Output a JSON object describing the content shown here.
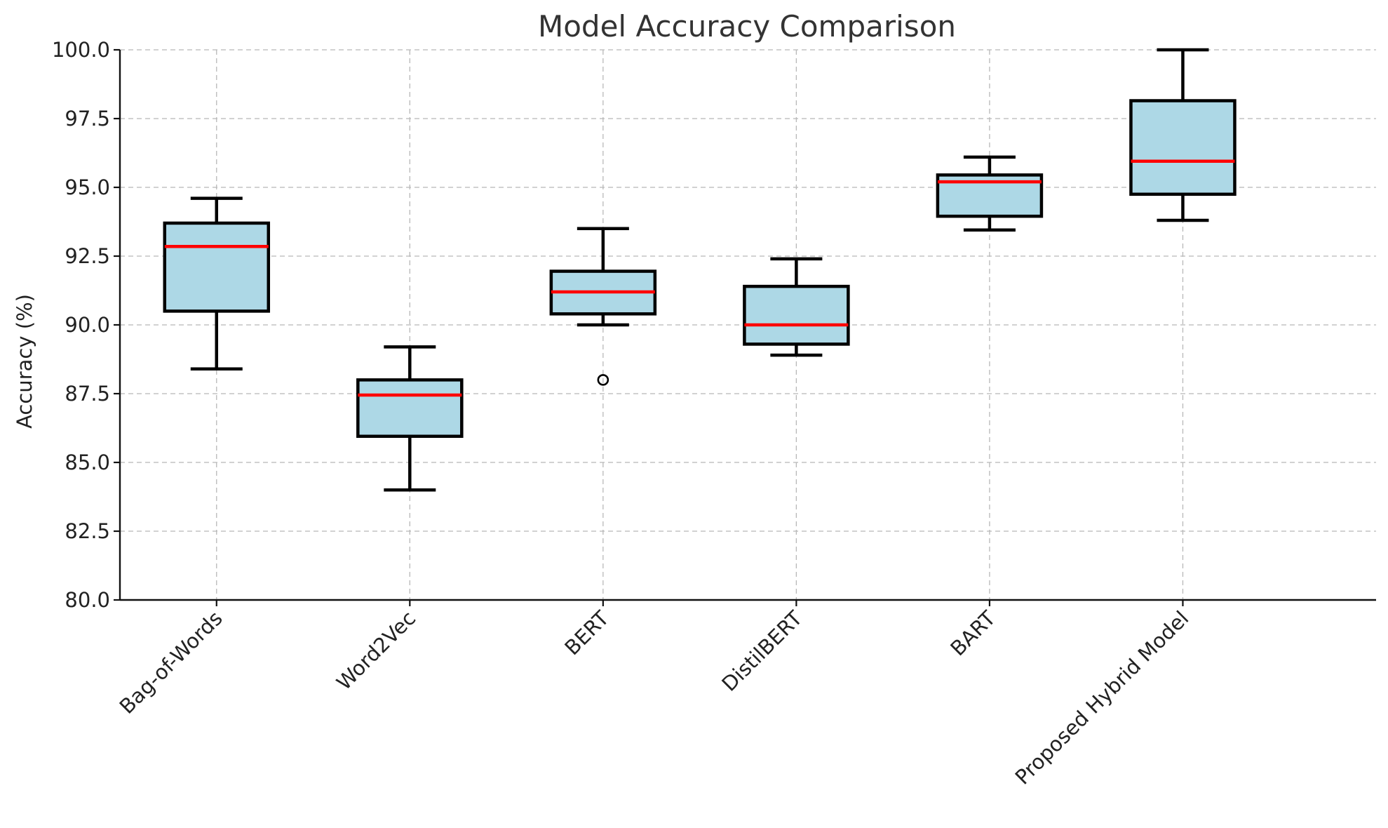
{
  "chart_data": {
    "type": "box",
    "title": "Model Accuracy Comparison",
    "xlabel": "",
    "ylabel": "Accuracy (%)",
    "ylim": [
      80.0,
      100.0
    ],
    "yticks": [
      "80.0",
      "82.5",
      "85.0",
      "87.5",
      "90.0",
      "92.5",
      "95.0",
      "97.5",
      "100.0"
    ],
    "grid": true,
    "colors": {
      "box_fill": "#add8e6",
      "box_edge": "#000000",
      "median": "#ff0000",
      "grid": "#b8b8b8"
    },
    "categories": [
      "Bag-of-Words",
      "Word2Vec",
      "BERT",
      "DistilBERT",
      "BART",
      "Proposed Hybrid Model"
    ],
    "boxes": [
      {
        "label": "Bag-of-Words",
        "whisker_low": 88.4,
        "q1": 90.5,
        "median": 92.85,
        "q3": 93.7,
        "whisker_high": 94.6,
        "outliers": []
      },
      {
        "label": "Word2Vec",
        "whisker_low": 84.0,
        "q1": 85.95,
        "median": 87.45,
        "q3": 88.0,
        "whisker_high": 89.2,
        "outliers": []
      },
      {
        "label": "BERT",
        "whisker_low": 90.0,
        "q1": 90.4,
        "median": 91.2,
        "q3": 91.95,
        "whisker_high": 93.5,
        "outliers": [
          88.0
        ]
      },
      {
        "label": "DistilBERT",
        "whisker_low": 88.9,
        "q1": 89.3,
        "median": 90.0,
        "q3": 91.4,
        "whisker_high": 92.4,
        "outliers": []
      },
      {
        "label": "BART",
        "whisker_low": 93.45,
        "q1": 93.95,
        "median": 95.2,
        "q3": 95.45,
        "whisker_high": 96.1,
        "outliers": []
      },
      {
        "label": "Proposed Hybrid Model",
        "whisker_low": 93.8,
        "q1": 94.75,
        "median": 95.95,
        "q3": 98.15,
        "whisker_high": 100.0,
        "outliers": []
      }
    ]
  }
}
